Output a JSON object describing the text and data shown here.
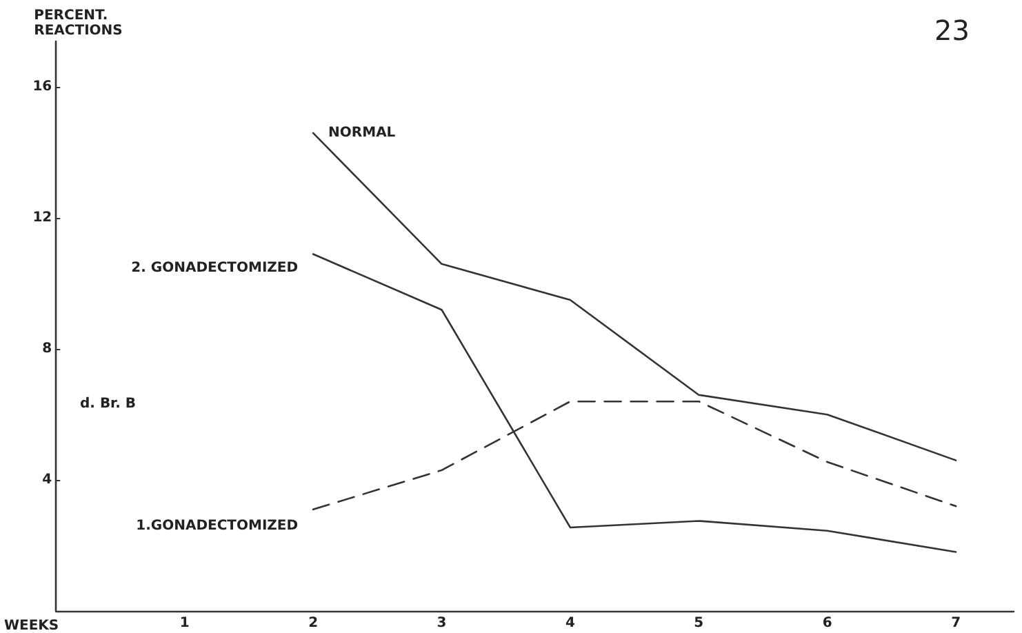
{
  "chart_data": {
    "type": "line",
    "xlabel": "WEEKS",
    "ylabel": "PERCENT.\nREACTIONS",
    "x": [
      2,
      3,
      4,
      5,
      6,
      7
    ],
    "xlim": [
      0,
      7.45
    ],
    "xticks": [
      1,
      2,
      3,
      4,
      5,
      6,
      7
    ],
    "ylim": [
      0,
      17.4
    ],
    "yticks": [
      4,
      8,
      12,
      16
    ],
    "grid": false,
    "legend": false,
    "marker": "none",
    "annotations": [
      "d. Br. B",
      "23"
    ],
    "series": [
      {
        "name": "NORMAL",
        "color": "#333333",
        "line_style": "solid",
        "values": [
          14.6,
          10.6,
          9.5,
          6.6,
          6.0,
          4.6
        ]
      },
      {
        "name": "2. GONADECTOMIZED",
        "color": "#333333",
        "line_style": "solid",
        "values": [
          10.9,
          9.2,
          2.55,
          2.75,
          2.45,
          1.8
        ]
      },
      {
        "name": "1.GONADECTOMIZED",
        "color": "#333333",
        "line_style": "dashed",
        "values": [
          3.1,
          4.3,
          6.4,
          6.4,
          4.55,
          3.2
        ]
      }
    ]
  }
}
